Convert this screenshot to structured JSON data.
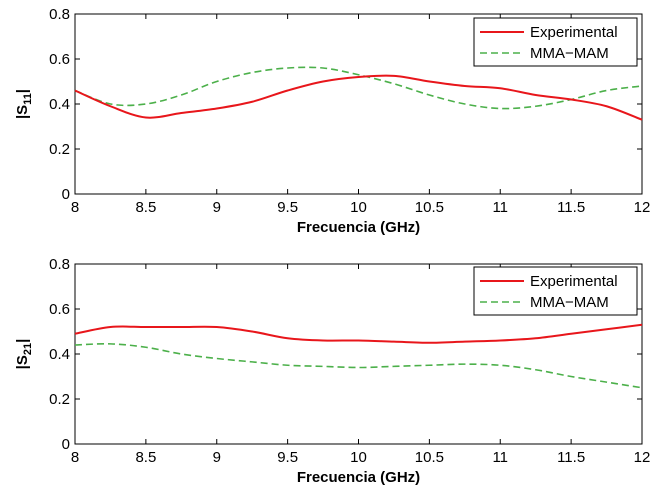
{
  "chart_data": [
    {
      "type": "line",
      "xlabel": "Frecuencia (GHz)",
      "ylabel": "|S",
      "ylabel_sub": "11",
      "ylabel_end": "|",
      "xlim": [
        8,
        12
      ],
      "ylim": [
        0,
        0.8
      ],
      "xticks": [
        "8",
        "8.5",
        "9",
        "9.5",
        "10",
        "10.5",
        "11",
        "11.5",
        "12"
      ],
      "yticks": [
        "0",
        "0.2",
        "0.4",
        "0.6",
        "0.8"
      ],
      "legend_position": "top-right",
      "series": [
        {
          "name": "Experimental",
          "color": "#e8161b",
          "style": "solid",
          "x": [
            8,
            8.25,
            8.5,
            8.75,
            9,
            9.25,
            9.5,
            9.75,
            10,
            10.25,
            10.5,
            10.75,
            11,
            11.25,
            11.5,
            11.75,
            12
          ],
          "y": [
            0.46,
            0.39,
            0.34,
            0.36,
            0.38,
            0.41,
            0.46,
            0.5,
            0.52,
            0.525,
            0.5,
            0.48,
            0.47,
            0.44,
            0.42,
            0.39,
            0.33
          ]
        },
        {
          "name": "MMA−MAM",
          "color": "#4cb04a",
          "style": "dashed",
          "x": [
            8,
            8.25,
            8.5,
            8.75,
            9,
            9.25,
            9.5,
            9.75,
            10,
            10.25,
            10.5,
            10.75,
            11,
            11.25,
            11.5,
            11.75,
            12
          ],
          "y": [
            0.46,
            0.4,
            0.4,
            0.44,
            0.5,
            0.54,
            0.56,
            0.56,
            0.53,
            0.49,
            0.44,
            0.4,
            0.38,
            0.39,
            0.42,
            0.46,
            0.48
          ]
        }
      ]
    },
    {
      "type": "line",
      "xlabel": "Frecuencia (GHz)",
      "ylabel": "|S",
      "ylabel_sub": "21",
      "ylabel_end": "|",
      "xlim": [
        8,
        12
      ],
      "ylim": [
        0,
        0.8
      ],
      "xticks": [
        "8",
        "8.5",
        "9",
        "9.5",
        "10",
        "10.5",
        "11",
        "11.5",
        "12"
      ],
      "yticks": [
        "0",
        "0.2",
        "0.4",
        "0.6",
        "0.8"
      ],
      "legend_position": "top-right",
      "series": [
        {
          "name": "Experimental",
          "color": "#e8161b",
          "style": "solid",
          "x": [
            8,
            8.25,
            8.5,
            8.75,
            9,
            9.25,
            9.5,
            9.75,
            10,
            10.25,
            10.5,
            10.75,
            11,
            11.25,
            11.5,
            11.75,
            12
          ],
          "y": [
            0.49,
            0.52,
            0.52,
            0.52,
            0.52,
            0.5,
            0.47,
            0.46,
            0.46,
            0.455,
            0.45,
            0.455,
            0.46,
            0.47,
            0.49,
            0.51,
            0.53
          ]
        },
        {
          "name": "MMA−MAM",
          "color": "#4cb04a",
          "style": "dashed",
          "x": [
            8,
            8.25,
            8.5,
            8.75,
            9,
            9.25,
            9.5,
            9.75,
            10,
            10.25,
            10.5,
            10.75,
            11,
            11.25,
            11.5,
            11.75,
            12
          ],
          "y": [
            0.44,
            0.445,
            0.43,
            0.4,
            0.38,
            0.365,
            0.35,
            0.345,
            0.34,
            0.345,
            0.35,
            0.355,
            0.35,
            0.33,
            0.3,
            0.275,
            0.25
          ]
        }
      ]
    }
  ]
}
